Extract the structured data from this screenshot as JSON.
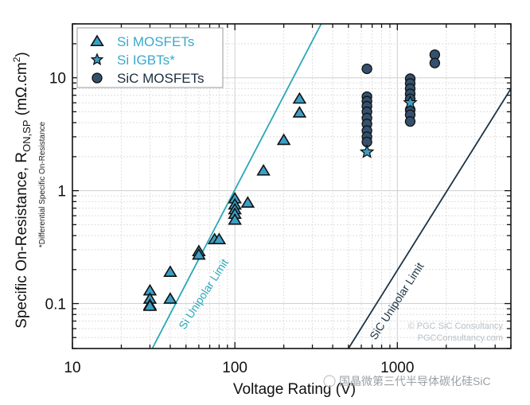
{
  "chart_data": {
    "type": "scatter",
    "title": "",
    "xlabel": "Voltage Rating (V)",
    "ylabel": "Specific On-Resistance, R_ON,SP (mΩ.cm²)",
    "ylabel_parts": {
      "main": "Specific On-Resistance, R",
      "sub": "ON,SP",
      "unit": " (mΩ.cm",
      "sup": "2",
      "close": ")"
    },
    "x_scale": "log",
    "y_scale": "log",
    "xlim": [
      10,
      5000
    ],
    "ylim": [
      0.04,
      30
    ],
    "x_ticks": [
      {
        "value": 10,
        "label": "10"
      },
      {
        "value": 100,
        "label": "100"
      },
      {
        "value": 1000,
        "label": "1000"
      }
    ],
    "y_ticks": [
      {
        "value": 0.1,
        "label": "0.1"
      },
      {
        "value": 1,
        "label": "1"
      },
      {
        "value": 10,
        "label": "10"
      }
    ],
    "grid": true,
    "legend_position": "upper left",
    "note": "*Differential Specific On-Resistance",
    "series": [
      {
        "name": "Si MOSFETs",
        "marker": "triangle",
        "color": "#3aa0c8",
        "label_color": "#3aa9c9",
        "points": [
          [
            30,
            0.13
          ],
          [
            30,
            0.11
          ],
          [
            30,
            0.097
          ],
          [
            30,
            0.095
          ],
          [
            40,
            0.19
          ],
          [
            40,
            0.11
          ],
          [
            60,
            0.29
          ],
          [
            60,
            0.27
          ],
          [
            75,
            0.37
          ],
          [
            80,
            0.37
          ],
          [
            100,
            0.85
          ],
          [
            100,
            0.75
          ],
          [
            100,
            0.68
          ],
          [
            100,
            0.62
          ],
          [
            100,
            0.55
          ],
          [
            120,
            0.78
          ],
          [
            150,
            1.5
          ],
          [
            200,
            2.8
          ],
          [
            250,
            6.5
          ],
          [
            250,
            4.9
          ]
        ]
      },
      {
        "name": "Si IGBTs*",
        "marker": "star",
        "color": "#3aa0c8",
        "label_color": "#3aa9c9",
        "points": [
          [
            650,
            2.2
          ],
          [
            1200,
            6.0
          ]
        ]
      },
      {
        "name": "SiC MOSFETs",
        "marker": "circle",
        "color": "#34506e",
        "label_color": "#1d2d3d",
        "points": [
          [
            650,
            12.0
          ],
          [
            650,
            6.8
          ],
          [
            650,
            6.2
          ],
          [
            650,
            5.6
          ],
          [
            650,
            5.0
          ],
          [
            650,
            4.4
          ],
          [
            650,
            3.9
          ],
          [
            650,
            3.4
          ],
          [
            650,
            3.0
          ],
          [
            650,
            2.7
          ],
          [
            1200,
            9.8
          ],
          [
            1200,
            8.9
          ],
          [
            1200,
            8.0
          ],
          [
            1200,
            7.2
          ],
          [
            1200,
            6.5
          ],
          [
            1200,
            5.2
          ],
          [
            1200,
            4.7
          ],
          [
            1200,
            4.1
          ],
          [
            1700,
            16.0
          ],
          [
            1700,
            13.5
          ]
        ]
      }
    ],
    "lines": [
      {
        "name": "Si Unipolar Limit",
        "color": "#2aa7b8",
        "from": [
          31,
          0.04
        ],
        "to": [
          340,
          30
        ]
      },
      {
        "name": "SiC Unipolar Limit",
        "color": "#1b3345",
        "from": [
          500,
          0.04
        ],
        "to": [
          5000,
          8.0
        ]
      }
    ]
  },
  "annotations": {
    "si_limit_label": "Si Unipolar Limit",
    "sic_limit_label": "SiC Unipolar Limit",
    "watermark_line1": "© PGC SiC Consultancy",
    "watermark_line2": "PGCConsultancy.com",
    "wechat_caption": "国晶微第三代半导体碳化硅SiC"
  }
}
